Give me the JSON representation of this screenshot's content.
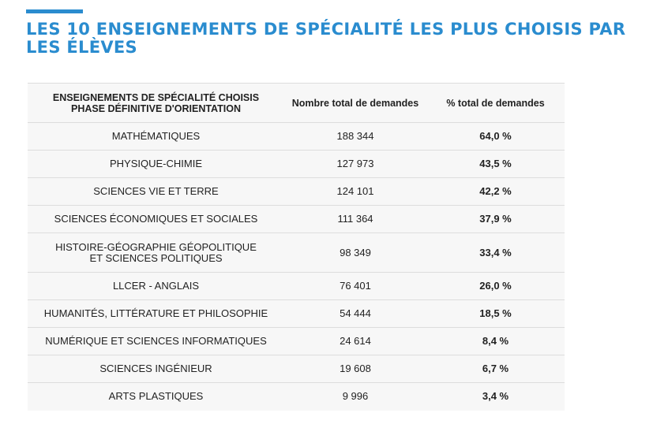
{
  "title": "LES 10 ENSEIGNEMENTS DE SPÉCIALITÉ LES PLUS CHOISIS PAR LES ÉLÈVES",
  "accent_color": "#2a8ccf",
  "table": {
    "headers": [
      "ENSEIGNEMENTS DE SPÉCIALITÉ CHOISIS PHASE DÉFINITIVE D'ORIENTATION",
      "Nombre total de demandes",
      "% total de demandes"
    ],
    "header_line1": "ENSEIGNEMENTS DE SPÉCIALITÉ CHOISIS",
    "header_line2": "PHASE DÉFINITIVE D'ORIENTATION",
    "rows": [
      {
        "subject": "MATHÉMATIQUES",
        "count": "188 344",
        "pct": "64,0 %"
      },
      {
        "subject": "PHYSIQUE-CHIMIE",
        "count": "127 973",
        "pct": "43,5 %"
      },
      {
        "subject": "SCIENCES VIE ET TERRE",
        "count": "124 101",
        "pct": "42,2 %"
      },
      {
        "subject": "SCIENCES ÉCONOMIQUES ET SOCIALES",
        "count": "111 364",
        "pct": "37,9 %"
      },
      {
        "subject": "HISTOIRE-GÉOGRAPHIE GÉOPOLITIQUE",
        "subject_line2": "ET SCIENCES POLITIQUES",
        "count": "98 349",
        "pct": "33,4 %"
      },
      {
        "subject": "LLCER - ANGLAIS",
        "count": "76 401",
        "pct": "26,0 %"
      },
      {
        "subject": "HUMANITÉS, LITTÉRATURE ET PHILOSOPHIE",
        "count": "54 444",
        "pct": "18,5 %"
      },
      {
        "subject": "NUMÉRIQUE ET SCIENCES INFORMATIQUES",
        "count": "24 614",
        "pct": "8,4 %"
      },
      {
        "subject": "SCIENCES INGÉNIEUR",
        "count": "19 608",
        "pct": "6,7 %"
      },
      {
        "subject": "ARTS PLASTIQUES",
        "count": "9 996",
        "pct": "3,4 %"
      }
    ]
  }
}
